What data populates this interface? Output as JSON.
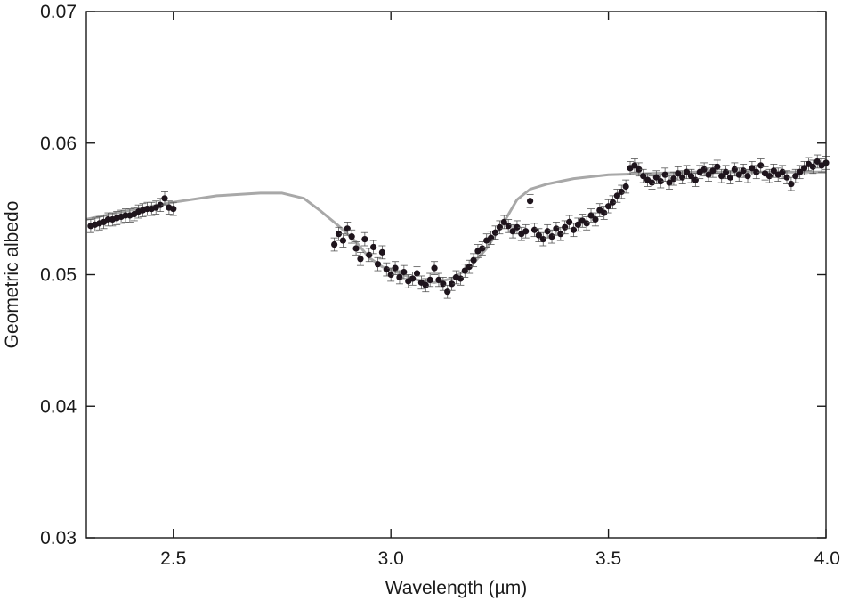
{
  "chart_data": {
    "type": "scatter",
    "xlabel": "Wavelength (µm)",
    "ylabel": "Geometric albedo",
    "xlim": [
      2.3,
      4.0
    ],
    "ylim": [
      0.03,
      0.07
    ],
    "x_ticks": [
      2.5,
      3.0,
      3.5,
      4.0
    ],
    "x_tick_labels": [
      "2.5",
      "3.0",
      "3.5",
      "4.0"
    ],
    "y_ticks": [
      0.03,
      0.04,
      0.05,
      0.06,
      0.07
    ],
    "y_tick_labels": [
      "0.03",
      "0.04",
      "0.05",
      "0.06",
      "0.07"
    ],
    "grid": false,
    "colors": {
      "observed": "#1e141c",
      "model": "#a8a8a8",
      "error_bars": "#555555",
      "axes": "#1a1a1a"
    },
    "series": [
      {
        "type": "line",
        "values": [
          [
            2.3,
            0.0542
          ],
          [
            2.4,
            0.0549
          ],
          [
            2.5,
            0.0555
          ],
          [
            2.6,
            0.056
          ],
          [
            2.7,
            0.0562
          ],
          [
            2.75,
            0.0562
          ],
          [
            2.8,
            0.0558
          ],
          [
            2.84,
            0.0548
          ],
          [
            2.88,
            0.0537
          ],
          [
            2.92,
            0.0525
          ],
          [
            2.95,
            0.0513
          ],
          [
            2.98,
            0.0506
          ],
          [
            3.02,
            0.0501
          ],
          [
            3.06,
            0.0496
          ],
          [
            3.1,
            0.0494
          ],
          [
            3.14,
            0.0497
          ],
          [
            3.18,
            0.0505
          ],
          [
            3.22,
            0.052
          ],
          [
            3.26,
            0.054
          ],
          [
            3.29,
            0.0557
          ],
          [
            3.32,
            0.0565
          ],
          [
            3.36,
            0.0569
          ],
          [
            3.42,
            0.0573
          ],
          [
            3.5,
            0.0576
          ],
          [
            3.6,
            0.0577
          ],
          [
            3.7,
            0.0578
          ],
          [
            3.8,
            0.0578
          ],
          [
            3.9,
            0.0578
          ],
          [
            4.0,
            0.0578
          ]
        ]
      },
      {
        "type": "scatter",
        "error": 0.0005,
        "values": [
          [
            2.31,
            0.0537
          ],
          [
            2.32,
            0.0538
          ],
          [
            2.33,
            0.0539
          ],
          [
            2.34,
            0.054
          ],
          [
            2.35,
            0.0542
          ],
          [
            2.36,
            0.0542
          ],
          [
            2.37,
            0.0543
          ],
          [
            2.38,
            0.0544
          ],
          [
            2.39,
            0.0545
          ],
          [
            2.4,
            0.0545
          ],
          [
            2.41,
            0.0546
          ],
          [
            2.42,
            0.0548
          ],
          [
            2.43,
            0.0549
          ],
          [
            2.44,
            0.055
          ],
          [
            2.45,
            0.055
          ],
          [
            2.46,
            0.0551
          ],
          [
            2.47,
            0.0553
          ],
          [
            2.48,
            0.0558
          ],
          [
            2.49,
            0.0551
          ],
          [
            2.5,
            0.055
          ],
          [
            2.87,
            0.0523
          ],
          [
            2.88,
            0.0531
          ],
          [
            2.89,
            0.0526
          ],
          [
            2.9,
            0.0535
          ],
          [
            2.91,
            0.0529
          ],
          [
            2.92,
            0.052
          ],
          [
            2.93,
            0.0512
          ],
          [
            2.94,
            0.0527
          ],
          [
            2.95,
            0.0515
          ],
          [
            2.96,
            0.0521
          ],
          [
            2.97,
            0.0508
          ],
          [
            2.98,
            0.0517
          ],
          [
            2.99,
            0.0504
          ],
          [
            3.0,
            0.05
          ],
          [
            3.01,
            0.0505
          ],
          [
            3.02,
            0.0498
          ],
          [
            3.03,
            0.0502
          ],
          [
            3.04,
            0.0495
          ],
          [
            3.05,
            0.0497
          ],
          [
            3.06,
            0.0501
          ],
          [
            3.07,
            0.0494
          ],
          [
            3.08,
            0.0492
          ],
          [
            3.09,
            0.0496
          ],
          [
            3.1,
            0.0505
          ],
          [
            3.11,
            0.0496
          ],
          [
            3.12,
            0.0493
          ],
          [
            3.13,
            0.0487
          ],
          [
            3.14,
            0.0493
          ],
          [
            3.15,
            0.0498
          ],
          [
            3.16,
            0.0497
          ],
          [
            3.17,
            0.0503
          ],
          [
            3.18,
            0.0506
          ],
          [
            3.19,
            0.0511
          ],
          [
            3.2,
            0.0518
          ],
          [
            3.21,
            0.052
          ],
          [
            3.22,
            0.0526
          ],
          [
            3.23,
            0.0528
          ],
          [
            3.24,
            0.0532
          ],
          [
            3.25,
            0.0536
          ],
          [
            3.26,
            0.054
          ],
          [
            3.27,
            0.0537
          ],
          [
            3.28,
            0.0533
          ],
          [
            3.29,
            0.0536
          ],
          [
            3.3,
            0.0531
          ],
          [
            3.31,
            0.0533
          ],
          [
            3.32,
            0.0556
          ],
          [
            3.33,
            0.0534
          ],
          [
            3.34,
            0.053
          ],
          [
            3.35,
            0.0527
          ],
          [
            3.36,
            0.0533
          ],
          [
            3.37,
            0.0529
          ],
          [
            3.38,
            0.0535
          ],
          [
            3.39,
            0.0531
          ],
          [
            3.4,
            0.0536
          ],
          [
            3.41,
            0.054
          ],
          [
            3.42,
            0.0534
          ],
          [
            3.43,
            0.0538
          ],
          [
            3.44,
            0.0541
          ],
          [
            3.45,
            0.0539
          ],
          [
            3.46,
            0.0545
          ],
          [
            3.47,
            0.0542
          ],
          [
            3.48,
            0.0549
          ],
          [
            3.49,
            0.0547
          ],
          [
            3.5,
            0.0552
          ],
          [
            3.51,
            0.0555
          ],
          [
            3.52,
            0.056
          ],
          [
            3.53,
            0.0563
          ],
          [
            3.54,
            0.0567
          ],
          [
            3.55,
            0.0581
          ],
          [
            3.56,
            0.0583
          ],
          [
            3.57,
            0.058
          ],
          [
            3.58,
            0.0575
          ],
          [
            3.59,
            0.0572
          ],
          [
            3.6,
            0.057
          ],
          [
            3.61,
            0.0574
          ],
          [
            3.62,
            0.0571
          ],
          [
            3.63,
            0.0576
          ],
          [
            3.64,
            0.057
          ],
          [
            3.65,
            0.0573
          ],
          [
            3.66,
            0.0577
          ],
          [
            3.67,
            0.0574
          ],
          [
            3.68,
            0.0578
          ],
          [
            3.69,
            0.0575
          ],
          [
            3.7,
            0.0572
          ],
          [
            3.71,
            0.0578
          ],
          [
            3.72,
            0.058
          ],
          [
            3.73,
            0.0576
          ],
          [
            3.74,
            0.0579
          ],
          [
            3.75,
            0.0582
          ],
          [
            3.76,
            0.0575
          ],
          [
            3.77,
            0.0578
          ],
          [
            3.78,
            0.0574
          ],
          [
            3.79,
            0.058
          ],
          [
            3.8,
            0.0576
          ],
          [
            3.81,
            0.0579
          ],
          [
            3.82,
            0.0575
          ],
          [
            3.83,
            0.0581
          ],
          [
            3.84,
            0.0578
          ],
          [
            3.85,
            0.0583
          ],
          [
            3.86,
            0.0577
          ],
          [
            3.87,
            0.0575
          ],
          [
            3.88,
            0.0579
          ],
          [
            3.89,
            0.0576
          ],
          [
            3.9,
            0.0578
          ],
          [
            3.91,
            0.0574
          ],
          [
            3.92,
            0.0569
          ],
          [
            3.93,
            0.0575
          ],
          [
            3.94,
            0.0578
          ],
          [
            3.95,
            0.0581
          ],
          [
            3.96,
            0.0584
          ],
          [
            3.97,
            0.0582
          ],
          [
            3.98,
            0.0586
          ],
          [
            3.99,
            0.0583
          ],
          [
            4.0,
            0.0585
          ]
        ]
      }
    ]
  }
}
